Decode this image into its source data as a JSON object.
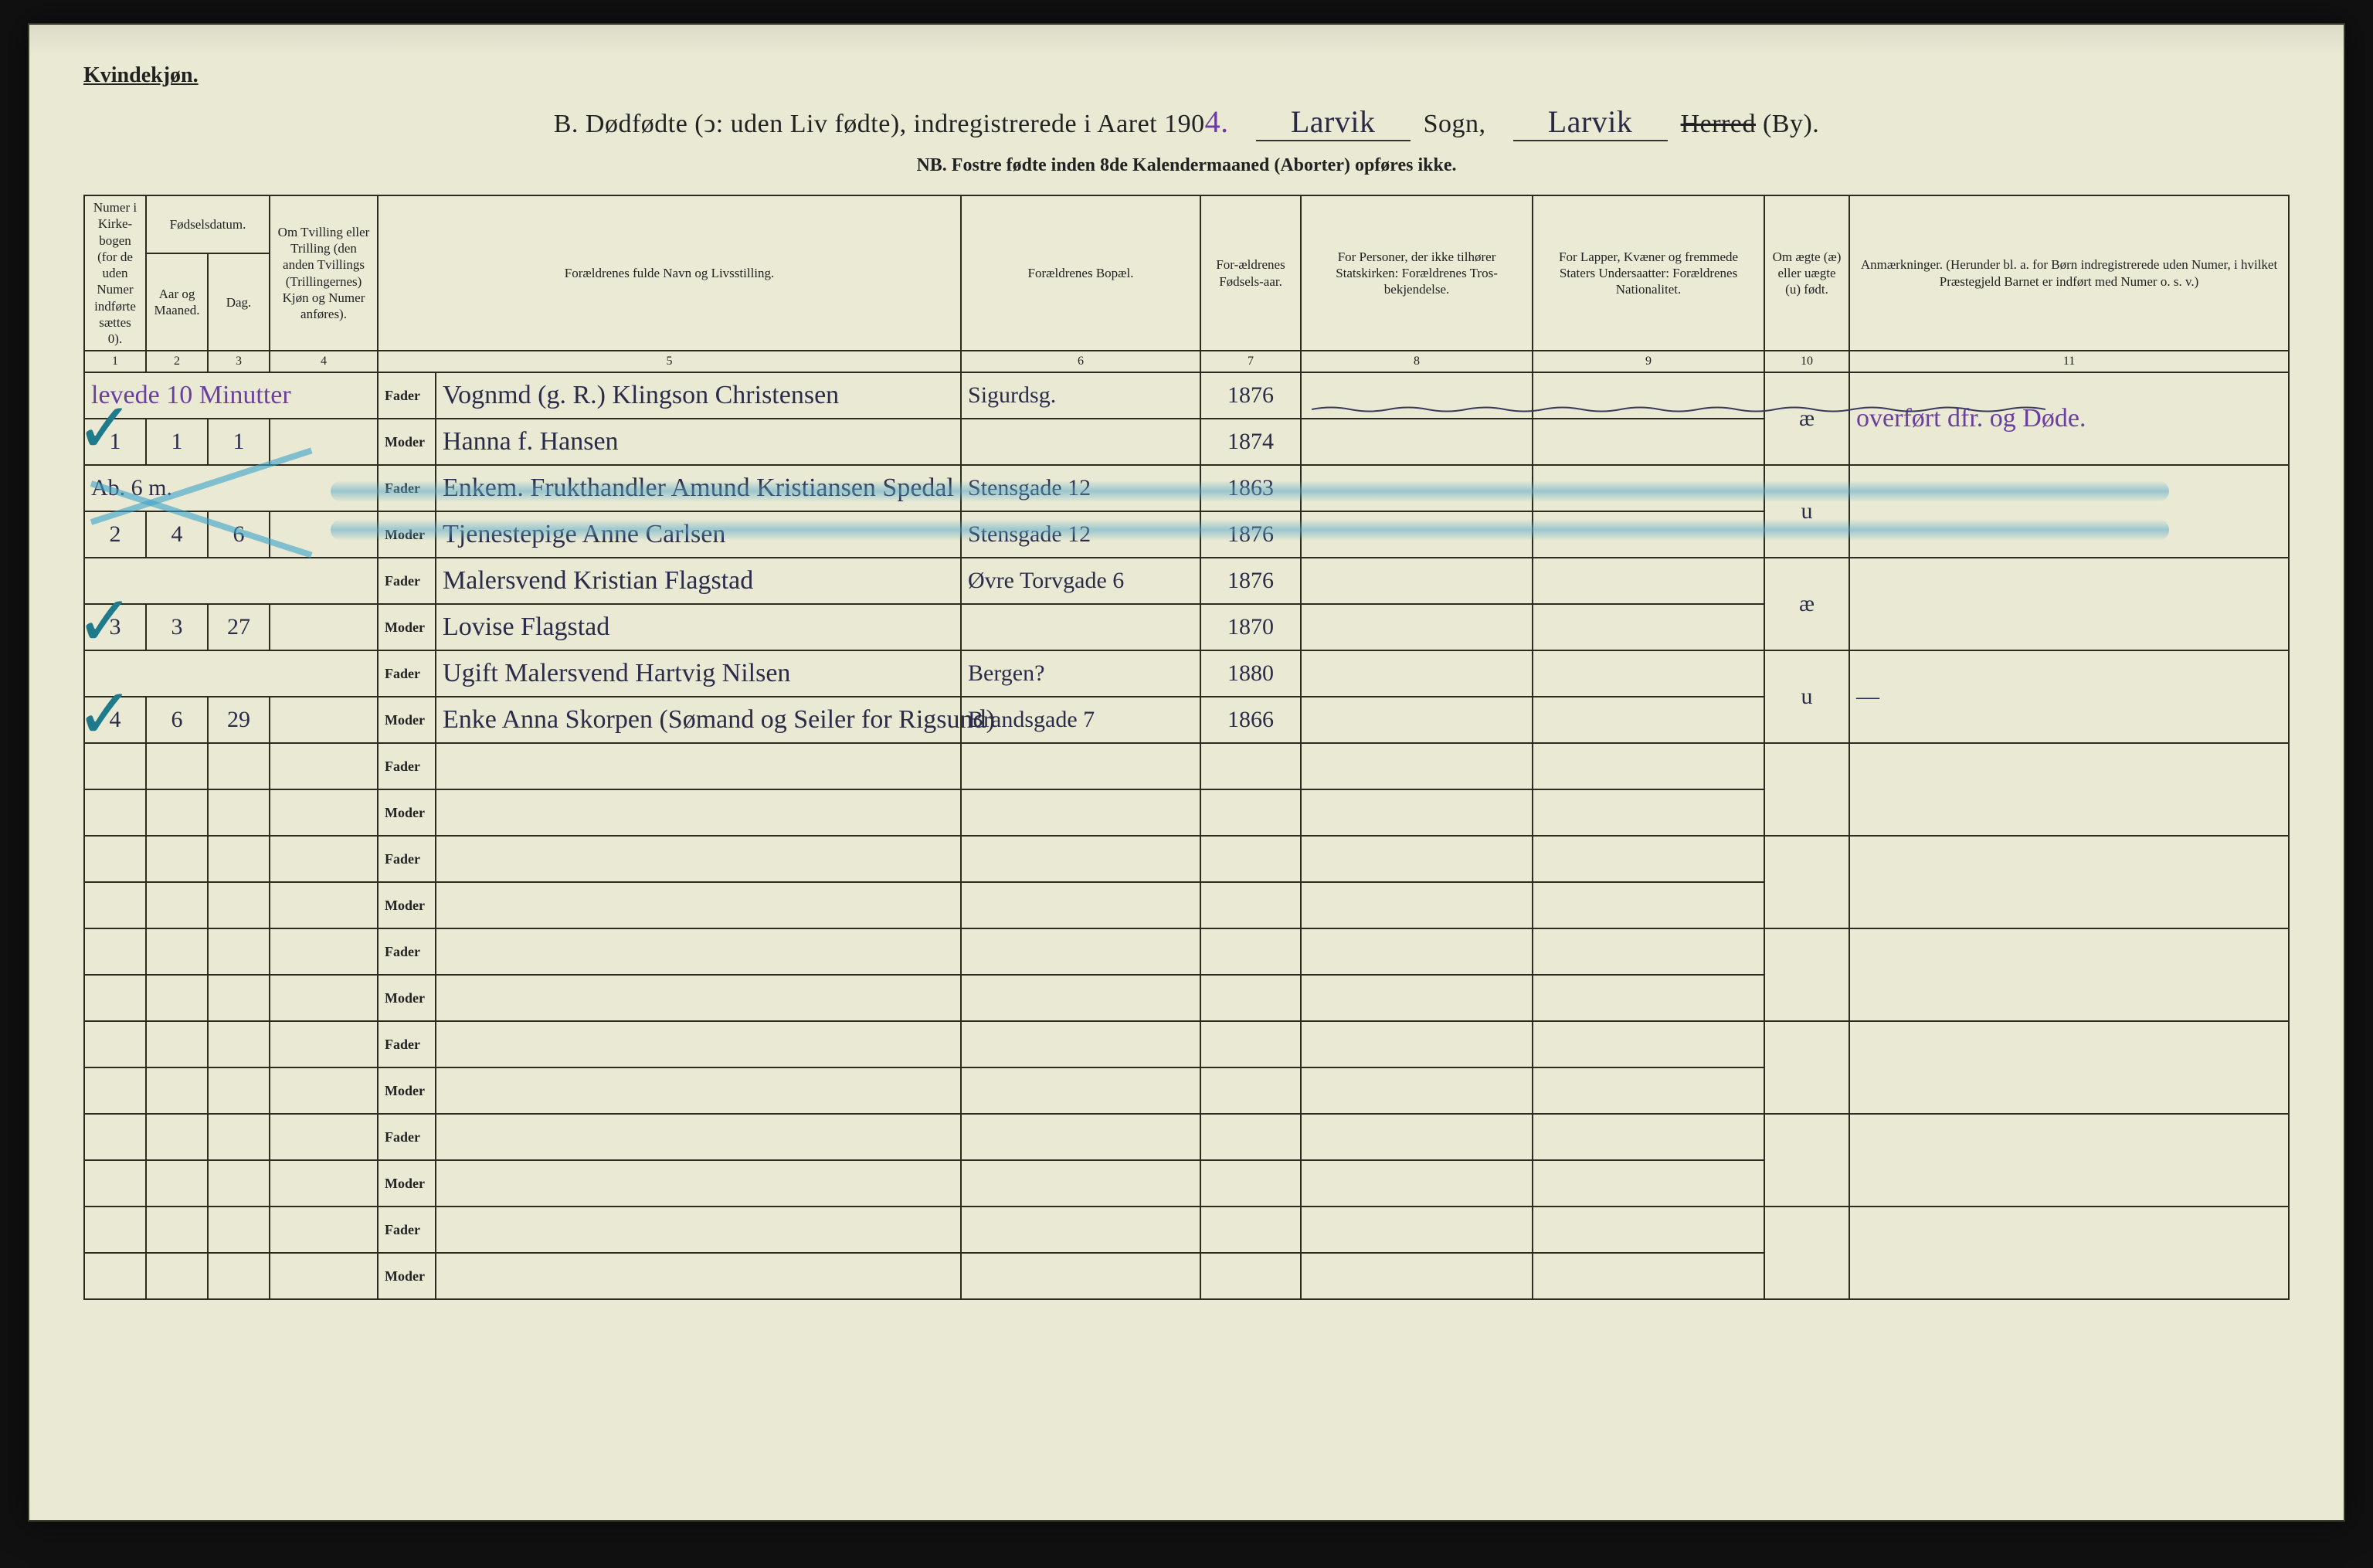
{
  "topleft": "Kvindekjøn.",
  "title_prefix": "B.  Dødfødte (ↄ: uden Liv fødte), indregistrerede i Aaret 190",
  "year_digit": "4.",
  "sogn_value": "Larvik",
  "sogn_label": "Sogn,",
  "herred_value": "Larvik",
  "herred_struck": "Herred",
  "herred_by": " (By).",
  "nb": "NB.  Fostre fødte inden 8de Kalendermaaned (Aborter) opføres ikke.",
  "headers": {
    "c1": "Numer i Kirke-bogen (for de uden Numer indførte sættes 0).",
    "c2": "Fødselsdatum. Aar og Maaned.",
    "c3": "Dag.",
    "c4": "Om Tvilling eller Trilling (den anden Tvillings (Trillingernes) Kjøn og Numer anføres).",
    "c5": "Forældrenes fulde Navn og Livsstilling.",
    "c6": "Forældrenes Bopæl.",
    "c7": "For-ældrenes Fødsels-aar.",
    "c8": "For Personer, der ikke tilhører Statskirken: Forældrenes Tros-bekjendelse.",
    "c9": "For Lapper, Kvæner og fremmede Staters Undersaatter: Forældrenes Nationalitet.",
    "c10": "Om ægte (æ) eller uægte (u) født.",
    "c11": "Anmærkninger. (Herunder bl. a. for Børn indregistrerede uden Numer, i hvilket Præstegjeld Barnet er indført med Numer o. s. v.)"
  },
  "colnumbers": [
    "1",
    "2",
    "3",
    "4",
    "5",
    "6",
    "7",
    "8",
    "9",
    "10",
    "11"
  ],
  "role_fader": "Fader",
  "role_moder": "Moder",
  "note_top": "levede 10 Minutter",
  "entries": [
    {
      "num": "1",
      "maaned": "1",
      "dag": "1",
      "fader": "Vognmd (g. R.) Klingson Christensen",
      "fader_bopael": "Sigurdsg.",
      "fader_aar": "1876",
      "moder": "Hanna f. Hansen",
      "moder_bopael": "",
      "moder_aar": "1874",
      "aegte": "æ",
      "anm": "overført dfr. og Døde."
    },
    {
      "num": "2",
      "maaned": "4",
      "dag": "6",
      "note_over": "Ab. 6 m.",
      "fader": "Enkem. Frukthandler Amund Kristiansen Spedal",
      "fader_bopael": "Stensgade 12",
      "fader_aar": "1863",
      "moder": "Tjenestepige Anne Carlsen",
      "moder_bopael": "Stensgade 12",
      "moder_aar": "1876",
      "aegte": "u",
      "anm": ""
    },
    {
      "num": "3",
      "maaned": "3",
      "dag": "27",
      "fader": "Malersvend Kristian Flagstad",
      "fader_bopael": "Øvre Torvgade 6",
      "fader_aar": "1876",
      "moder": "Lovise Flagstad",
      "moder_bopael": "",
      "moder_aar": "1870",
      "aegte": "æ",
      "anm": ""
    },
    {
      "num": "4",
      "maaned": "6",
      "dag": "29",
      "fader": "Ugift Malersvend Hartvig Nilsen",
      "fader_bopael": "Bergen?",
      "fader_aar": "1880",
      "moder": "Enke Anna Skorpen (Sømand og Seiler for Rigsund)",
      "moder_bopael": "Brandsgade 7",
      "moder_aar": "1866",
      "aegte": "u",
      "anm": "—"
    }
  ],
  "blank_pairs": 6
}
